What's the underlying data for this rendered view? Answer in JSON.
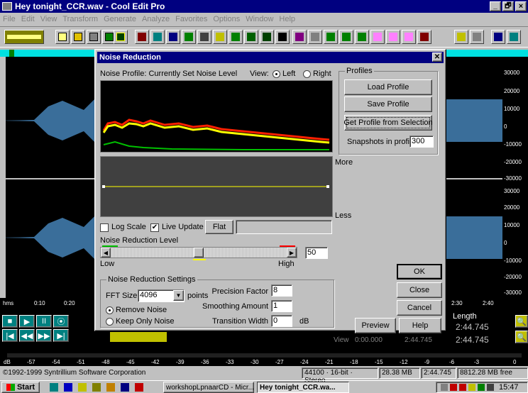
{
  "app": {
    "title": "Hey tonight_CCR.wav - Cool Edit Pro",
    "title_controls": [
      "_",
      "🗗",
      "×"
    ]
  },
  "menu": [
    "File",
    "Edit",
    "View",
    "Transform",
    "Generate",
    "Analyze",
    "Favorites",
    "Options",
    "Window",
    "Help"
  ],
  "ruler_right": [
    "30000",
    "20000",
    "10000",
    "0",
    "-10000",
    "-20000",
    "-30000",
    "30000",
    "20000",
    "10000",
    "0",
    "-10000",
    "-20000",
    "-30000"
  ],
  "timeline": {
    "left": [
      "hms",
      "0:10",
      "0:20"
    ],
    "right": [
      "2:30",
      "2:40"
    ]
  },
  "dialog": {
    "title": "Noise Reduction",
    "profile_label": "Noise Profile: Currently Set Noise Level",
    "view_label": "View:",
    "view_left": "Left",
    "view_right": "Right",
    "more": "More",
    "less": "Less",
    "profiles": {
      "group": "Profiles",
      "load": "Load Profile",
      "save": "Save Profile",
      "get": "Get Profile from Selection",
      "snapshots_label": "Snapshots in profile",
      "snapshots_value": "300"
    },
    "log_scale": "Log Scale",
    "live_update": "Live Update",
    "flat": "Flat",
    "level_label": "Noise Reduction Level",
    "level_value": "50",
    "level_fraction": 0.5,
    "low": "Low",
    "high": "High",
    "settings": {
      "group": "Noise Reduction Settings",
      "fft_label": "FFT Size",
      "fft_value": "4096",
      "points": "points",
      "remove": "Remove Noise",
      "keep": "Keep Only Noise",
      "precision_label": "Precision Factor",
      "precision_value": "8",
      "smoothing_label": "Smoothing Amount",
      "smoothing_value": "1",
      "transition_label": "Transition Width",
      "transition_value": "0",
      "db": "dB"
    },
    "buttons": {
      "ok": "OK",
      "close": "Close",
      "cancel": "Cancel",
      "preview": "Preview",
      "help": "Help"
    }
  },
  "length_panel": {
    "label": "Length",
    "value1": "2:44.745",
    "value2": "2:44.745"
  },
  "view_row": {
    "label": "View",
    "begin": "0:00.000",
    "end": "2:44.745"
  },
  "db_ruler": [
    "dB",
    "-57",
    "-54",
    "-51",
    "-48",
    "-45",
    "-42",
    "-39",
    "-36",
    "-33",
    "-30",
    "-27",
    "-24",
    "-21",
    "-18",
    "-15",
    "-12",
    "-9",
    "-6",
    "-3",
    "0"
  ],
  "status": {
    "copyright": "©1992-1999 Syntrillium Software Corporation",
    "format": "44100 · 16-bit · Stereo",
    "size": "28.38 MB",
    "length": "2:44.745",
    "free": "8812.28 MB free"
  },
  "taskbar": {
    "start": "Start",
    "task1": "workshopLpnaarCD - Micr...",
    "task2": "Hey tonight_CCR.wa...",
    "clock": "15:47"
  },
  "colors": {
    "titlebar": "#000080",
    "wave": "#3a6e9a",
    "spectrum_red": "#ff2000",
    "spectrum_yellow": "#ffff00",
    "spectrum_green": "#00c000",
    "desktop_cyan": "#00e0e0"
  }
}
